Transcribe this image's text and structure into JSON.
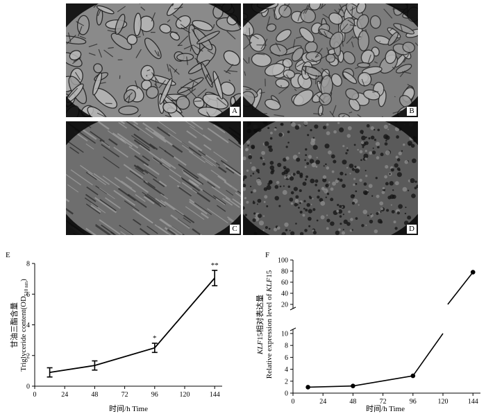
{
  "micrographs": [
    {
      "label": "A",
      "tone": "#8a8a8a",
      "dark": "#1a1a1a",
      "pattern": "large-cells"
    },
    {
      "label": "B",
      "tone": "#7c7c7c",
      "dark": "#262626",
      "pattern": "mixed-cells"
    },
    {
      "label": "C",
      "tone": "#6e6e6e",
      "dark": "#2a2a2a",
      "pattern": "streaks"
    },
    {
      "label": "D",
      "tone": "#5a5a5a",
      "dark": "#151515",
      "pattern": "granular"
    }
  ],
  "chart_data": [
    {
      "panel_label": "E",
      "type": "line",
      "x": [
        12,
        48,
        96,
        144
      ],
      "values": [
        0.9,
        1.35,
        2.5,
        7.05
      ],
      "errors": [
        0.3,
        0.3,
        0.3,
        0.5
      ],
      "significance": [
        "",
        "",
        "*",
        "**"
      ],
      "xticks": [
        0,
        24,
        48,
        72,
        96,
        120,
        144
      ],
      "yticks": [
        0,
        2,
        4,
        6,
        8
      ],
      "xlim": [
        0,
        150
      ],
      "ylim": [
        0,
        8
      ],
      "xlabel": "时间/h  Time",
      "ylabel_cn": "甘油三酯含量",
      "ylabel_en": "Triglyceride content(OD",
      "ylabel_sub": "510 nm",
      "ylabel_end": ")",
      "grid": false
    },
    {
      "panel_label": "F",
      "type": "line",
      "x": [
        12,
        48,
        96,
        144
      ],
      "values": [
        1.0,
        1.2,
        2.9,
        78
      ],
      "axis_break": [
        10,
        20
      ],
      "xticks": [
        0,
        24,
        48,
        72,
        96,
        120,
        144
      ],
      "yticks_lower": [
        0,
        2,
        4,
        6,
        8,
        10
      ],
      "yticks_upper": [
        20,
        40,
        60,
        80,
        100
      ],
      "xlim": [
        0,
        150
      ],
      "xlabel": "时间/h  Time",
      "ylabel_cn_italic": "KLF",
      "ylabel_cn_rest": "15相对表达量",
      "ylabel_en": "Relative expression level of ",
      "ylabel_en_italic": "KLF",
      "ylabel_en_end": "15",
      "grid": false
    }
  ]
}
